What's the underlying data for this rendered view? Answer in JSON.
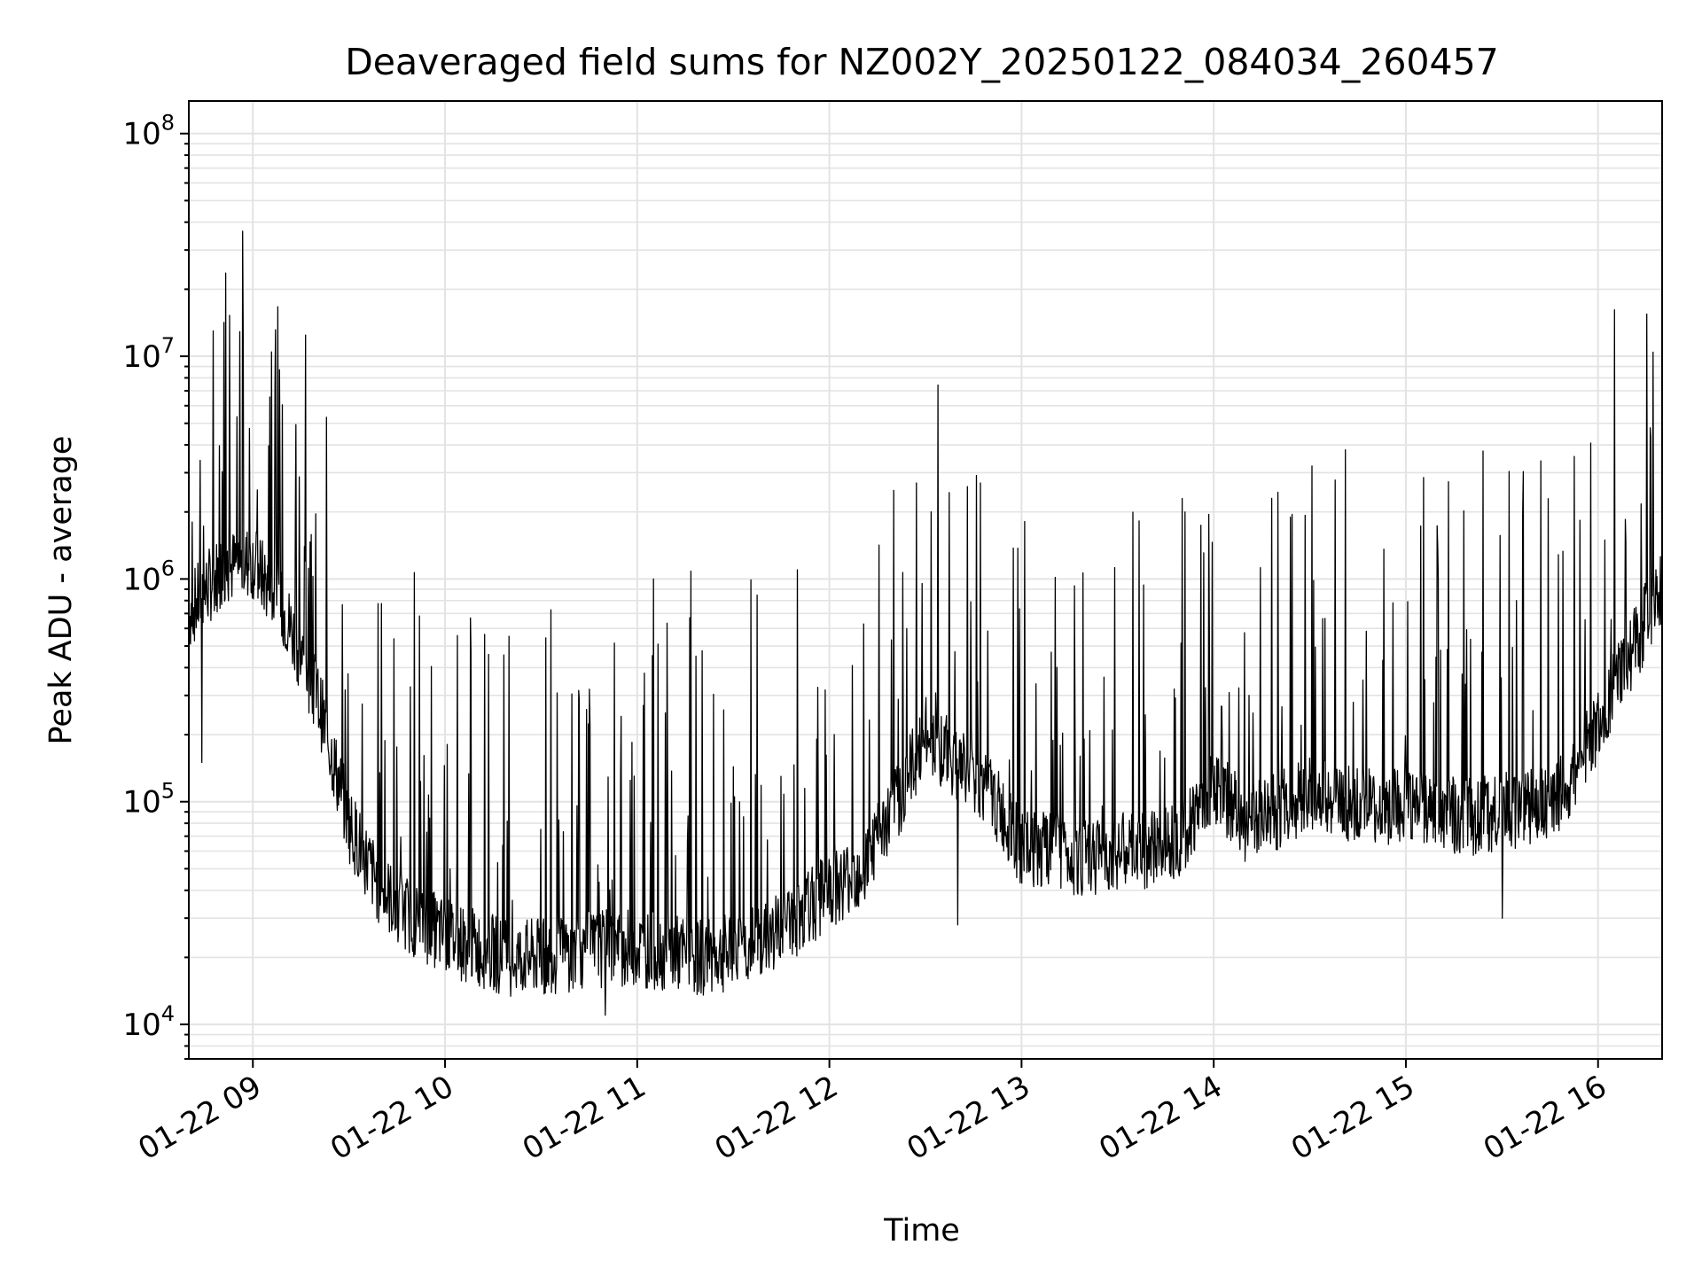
{
  "chart_data": {
    "type": "line",
    "title": "Deaveraged field sums for NZ002Y_20250122_084034_260457",
    "xlabel": "Time",
    "ylabel": "Peak ADU - average",
    "yscale": "log",
    "ylim": [
      7000,
      140000000
    ],
    "xlim": [
      "2025-01-22 08:40",
      "2025-01-22 16:20"
    ],
    "x_ticks": [
      "01-22 09",
      "01-22 10",
      "01-22 11",
      "01-22 12",
      "01-22 13",
      "01-22 14",
      "01-22 15",
      "01-22 16"
    ],
    "y_ticks": [
      {
        "base": "10",
        "exp": "4",
        "value": 10000
      },
      {
        "base": "10",
        "exp": "5",
        "value": 100000
      },
      {
        "base": "10",
        "exp": "6",
        "value": 1000000
      },
      {
        "base": "10",
        "exp": "7",
        "value": 10000000
      },
      {
        "base": "10",
        "exp": "8",
        "value": 100000000
      }
    ],
    "grid": true,
    "line_color": "#000000",
    "series": [
      {
        "x": [
          "2025-01-22 08:40",
          "2025-01-22 08:50",
          "2025-01-22 09:00",
          "2025-01-22 09:10",
          "2025-01-22 09:20",
          "2025-01-22 09:30",
          "2025-01-22 09:40",
          "2025-01-22 09:50",
          "2025-01-22 10:00",
          "2025-01-22 10:10",
          "2025-01-22 10:20",
          "2025-01-22 10:30",
          "2025-01-22 10:40",
          "2025-01-22 10:50",
          "2025-01-22 11:00",
          "2025-01-22 11:10",
          "2025-01-22 11:20",
          "2025-01-22 11:30",
          "2025-01-22 11:40",
          "2025-01-22 11:50",
          "2025-01-22 12:00",
          "2025-01-22 12:10",
          "2025-01-22 12:20",
          "2025-01-22 12:30",
          "2025-01-22 12:40",
          "2025-01-22 12:50",
          "2025-01-22 13:00",
          "2025-01-22 13:10",
          "2025-01-22 13:20",
          "2025-01-22 13:30",
          "2025-01-22 13:40",
          "2025-01-22 13:50",
          "2025-01-22 14:00",
          "2025-01-22 14:10",
          "2025-01-22 14:20",
          "2025-01-22 14:30",
          "2025-01-22 14:40",
          "2025-01-22 14:50",
          "2025-01-22 15:00",
          "2025-01-22 15:10",
          "2025-01-22 15:20",
          "2025-01-22 15:30",
          "2025-01-22 15:40",
          "2025-01-22 15:50",
          "2025-01-22 16:00",
          "2025-01-22 16:10",
          "2025-01-22 16:20"
        ],
        "y": [
          700000,
          1100000,
          1200000,
          700000,
          300000,
          80000,
          40000,
          30000,
          25000,
          22000,
          20000,
          20000,
          21000,
          22000,
          22000,
          21000,
          20000,
          21000,
          24000,
          30000,
          40000,
          50000,
          90000,
          200000,
          150000,
          110000,
          60000,
          60000,
          55000,
          60000,
          60000,
          70000,
          120000,
          80000,
          90000,
          110000,
          100000,
          90000,
          100000,
          90000,
          85000,
          90000,
          95000,
          110000,
          220000,
          450000,
          950000
        ],
        "spikes": [
          {
            "x": "2025-01-22 08:41",
            "y": 1800000
          },
          {
            "x": "2025-01-22 10:45",
            "y": 320000
          },
          {
            "x": "2025-01-22 11:05",
            "y": 1000000
          },
          {
            "x": "2025-01-22 11:50",
            "y": 1100000
          },
          {
            "x": "2025-01-22 12:20",
            "y": 2500000
          },
          {
            "x": "2025-01-22 12:27",
            "y": 2700000
          },
          {
            "x": "2025-01-22 12:43",
            "y": 2600000
          },
          {
            "x": "2025-01-22 12:47",
            "y": 2700000
          },
          {
            "x": "2025-01-22 13:50",
            "y": 2300000
          },
          {
            "x": "2025-01-22 14:41",
            "y": 3800000
          },
          {
            "x": "2025-01-22 15:10",
            "y": 1000000
          },
          {
            "x": "2025-01-22 16:18",
            "y": 1100000
          }
        ],
        "dips": [
          {
            "x": "2025-01-22 08:44",
            "y": 150000
          },
          {
            "x": "2025-01-22 10:50",
            "y": 11000
          },
          {
            "x": "2025-01-22 12:40",
            "y": 28000
          },
          {
            "x": "2025-01-22 15:30",
            "y": 30000
          }
        ]
      }
    ]
  }
}
